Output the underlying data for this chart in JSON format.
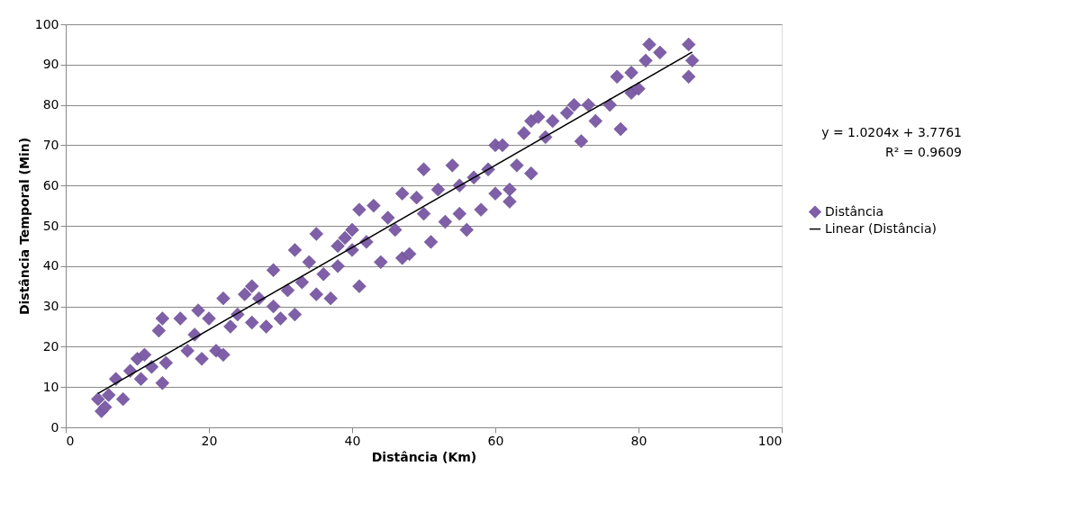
{
  "chart_data": {
    "type": "scatter",
    "xlabel": "Distância (Km)",
    "ylabel": "Distância Temporal (Min)",
    "annotations": [
      "y = 1.0204x + 3.7761",
      "R² = 0.9609"
    ],
    "xlim": [
      0,
      100
    ],
    "xticks": [
      0,
      20,
      40,
      60,
      80,
      100
    ],
    "ylim": [
      0,
      100
    ],
    "yticks": [
      0,
      10,
      20,
      30,
      40,
      50,
      60,
      70,
      80,
      90,
      100
    ],
    "grid": "y",
    "legend": "right",
    "series": [
      {
        "name": "Distância",
        "marker": "diamond",
        "color": "#7e5fa8",
        "x": [
          4.5,
          5,
          5.5,
          6,
          7,
          8,
          9,
          10,
          10.5,
          11,
          12,
          13,
          13.5,
          13.5,
          14,
          16,
          17,
          18,
          18.5,
          19,
          20,
          21,
          22,
          22,
          23,
          24,
          25,
          26,
          26,
          27,
          28,
          29,
          29,
          30,
          31,
          32,
          32,
          33,
          34,
          35,
          35,
          36,
          37,
          38,
          38,
          39,
          40,
          40,
          41,
          41,
          42,
          43,
          44,
          45,
          46,
          47,
          47,
          48,
          49,
          50,
          50,
          51,
          52,
          53,
          54,
          55,
          55,
          56,
          57,
          58,
          59,
          60,
          60,
          61,
          62,
          62,
          63,
          64,
          65,
          65,
          66,
          67,
          68,
          70,
          71,
          72,
          73,
          74,
          76,
          77,
          77.5,
          79,
          79,
          80,
          81,
          81.5,
          83,
          87,
          87,
          87.5
        ],
        "values": [
          7,
          4,
          5,
          8,
          12,
          7,
          14,
          17,
          12,
          18,
          15,
          24,
          27,
          11,
          16,
          27,
          19,
          23,
          29,
          17,
          27,
          19,
          32,
          18,
          25,
          28,
          33,
          35,
          26,
          32,
          25,
          39,
          30,
          27,
          34,
          44,
          28,
          36,
          41,
          48,
          33,
          38,
          32,
          45,
          40,
          47,
          49,
          44,
          35,
          54,
          46,
          55,
          41,
          52,
          49,
          58,
          42,
          43,
          57,
          64,
          53,
          46,
          59,
          51,
          65,
          53,
          60,
          49,
          62,
          54,
          64,
          70,
          58,
          70,
          59,
          56,
          65,
          73,
          63,
          76,
          77,
          72,
          76,
          78,
          80,
          71,
          80,
          76,
          80,
          87,
          74,
          88,
          83,
          84,
          91,
          95,
          93,
          95,
          87,
          91
        ]
      },
      {
        "name": "Linear (Distância)",
        "type": "line",
        "marker": "none",
        "line_style": "solid",
        "color": "#000000",
        "x": [
          4.5,
          87.5
        ],
        "values": [
          8.4,
          93.1
        ]
      }
    ]
  }
}
